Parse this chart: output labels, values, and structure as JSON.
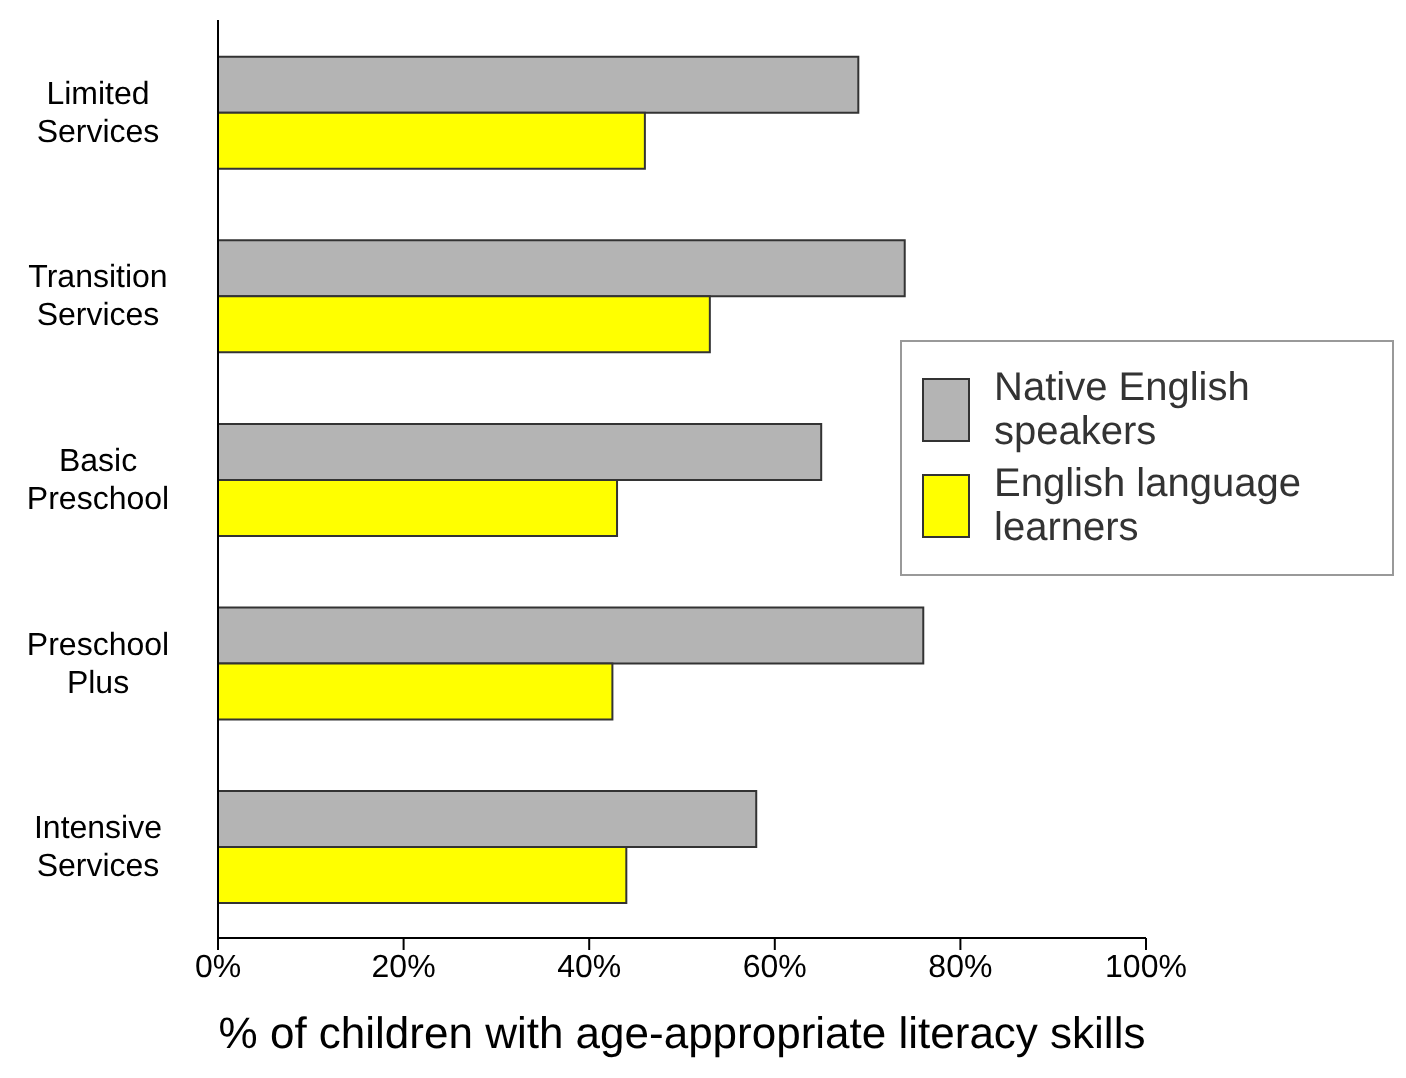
{
  "chart_data": {
    "type": "bar",
    "orientation": "horizontal",
    "xlabel": "% of children with age-appropriate literacy skills",
    "categories": [
      "Limited Services",
      "Transition Services",
      "Basic Preschool",
      "Preschool Plus",
      "Intensive Services"
    ],
    "series": [
      {
        "name": "Native English speakers",
        "color": "#b4b4b4",
        "values": [
          69,
          74,
          65,
          76,
          58
        ]
      },
      {
        "name": "English language learners",
        "color": "#ffff00",
        "values": [
          46,
          53,
          43,
          42.5,
          44
        ]
      }
    ],
    "xlim": [
      0,
      100
    ],
    "xticks": [
      {
        "value": 0,
        "label": "0%"
      },
      {
        "value": 20,
        "label": "20%"
      },
      {
        "value": 40,
        "label": "40%"
      },
      {
        "value": 60,
        "label": "60%"
      },
      {
        "value": 80,
        "label": "80%"
      },
      {
        "value": 100,
        "label": "100%"
      }
    ],
    "grid": false,
    "legend": "right"
  }
}
